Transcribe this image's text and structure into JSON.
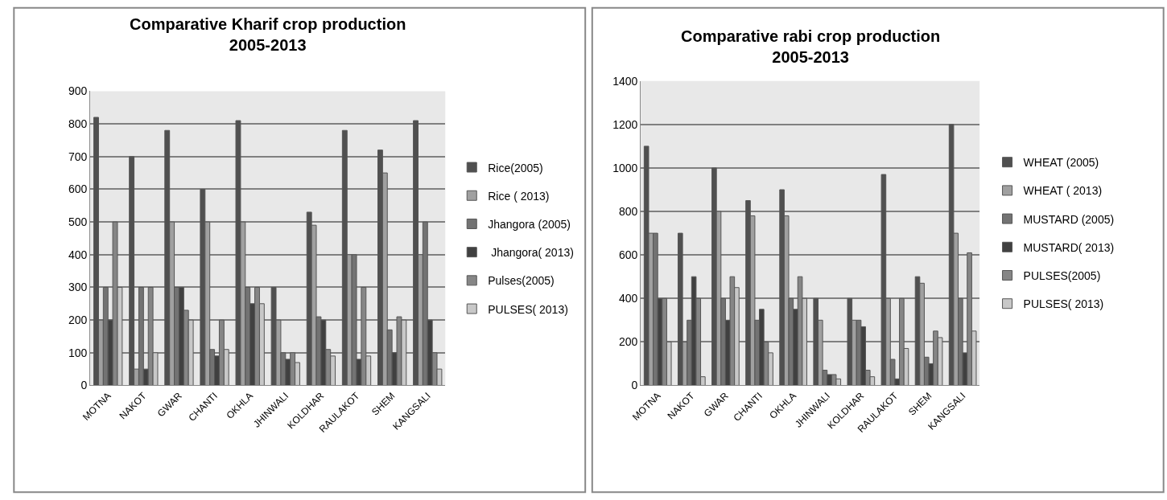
{
  "chart_data": [
    {
      "type": "bar",
      "title": "Comparative Kharif crop production\n2005-2013",
      "categories": [
        "MOTNA",
        "NAKOT",
        "GWAR",
        "CHANTI",
        "OKHLA",
        "JHINWALI",
        "KOLDHAR",
        "RAULAKOT",
        "SHEM",
        "KANGSALI"
      ],
      "ylim": [
        0,
        900
      ],
      "yticks": [
        0,
        100,
        200,
        300,
        400,
        500,
        600,
        700,
        800,
        900
      ],
      "grid": "y",
      "legend": "right",
      "series": [
        {
          "name": "Rice(2005)",
          "color": "#505050",
          "values": [
            820,
            700,
            780,
            600,
            810,
            300,
            530,
            780,
            720,
            810
          ]
        },
        {
          "name": "Rice ( 2013)",
          "color": "#a0a0a0",
          "values": [
            200,
            50,
            500,
            500,
            500,
            200,
            490,
            400,
            650,
            400
          ]
        },
        {
          "name": "Jhangora (2005)",
          "color": "#737373",
          "values": [
            300,
            300,
            300,
            110,
            300,
            100,
            210,
            400,
            170,
            500
          ]
        },
        {
          "name": " Jhangora( 2013)",
          "color": "#404040",
          "values": [
            200,
            50,
            300,
            90,
            250,
            80,
            200,
            80,
            100,
            200
          ]
        },
        {
          "name": "Pulses(2005)",
          "color": "#868686",
          "values": [
            500,
            300,
            230,
            200,
            300,
            100,
            110,
            300,
            210,
            100
          ]
        },
        {
          "name": "PULSES( 2013)",
          "color": "#c8c8c8",
          "values": [
            300,
            100,
            200,
            110,
            250,
            70,
            90,
            90,
            200,
            50
          ]
        }
      ]
    },
    {
      "type": "bar",
      "title": "Comparative rabi crop production\n2005-2013",
      "categories": [
        "MOTNA",
        "NAKOT",
        "GWAR",
        "CHANTI",
        "OKHLA",
        "JHINWALI",
        "KOLDHAR",
        "RAULAKOT",
        "SHEM",
        "KANGSALI"
      ],
      "ylim": [
        0,
        1400
      ],
      "yticks": [
        0,
        200,
        400,
        600,
        800,
        1000,
        1200,
        1400
      ],
      "grid": "y",
      "legend": "right",
      "series": [
        {
          "name": "WHEAT (2005)",
          "color": "#505050",
          "values": [
            1100,
            700,
            1000,
            850,
            900,
            400,
            400,
            970,
            500,
            1200
          ]
        },
        {
          "name": "WHEAT ( 2013)",
          "color": "#a0a0a0",
          "values": [
            700,
            200,
            800,
            780,
            780,
            300,
            300,
            400,
            470,
            700
          ]
        },
        {
          "name": "MUSTARD (2005)",
          "color": "#737373",
          "values": [
            700,
            300,
            400,
            300,
            400,
            70,
            300,
            120,
            130,
            400
          ]
        },
        {
          "name": "MUSTARD( 2013)",
          "color": "#404040",
          "values": [
            400,
            500,
            300,
            350,
            350,
            50,
            270,
            30,
            100,
            150
          ]
        },
        {
          "name": "PULSES(2005)",
          "color": "#868686",
          "values": [
            400,
            400,
            500,
            200,
            500,
            50,
            70,
            400,
            250,
            610
          ]
        },
        {
          "name": "PULSES( 2013)",
          "color": "#c8c8c8",
          "values": [
            200,
            40,
            450,
            150,
            400,
            30,
            40,
            170,
            220,
            250
          ]
        }
      ]
    }
  ]
}
